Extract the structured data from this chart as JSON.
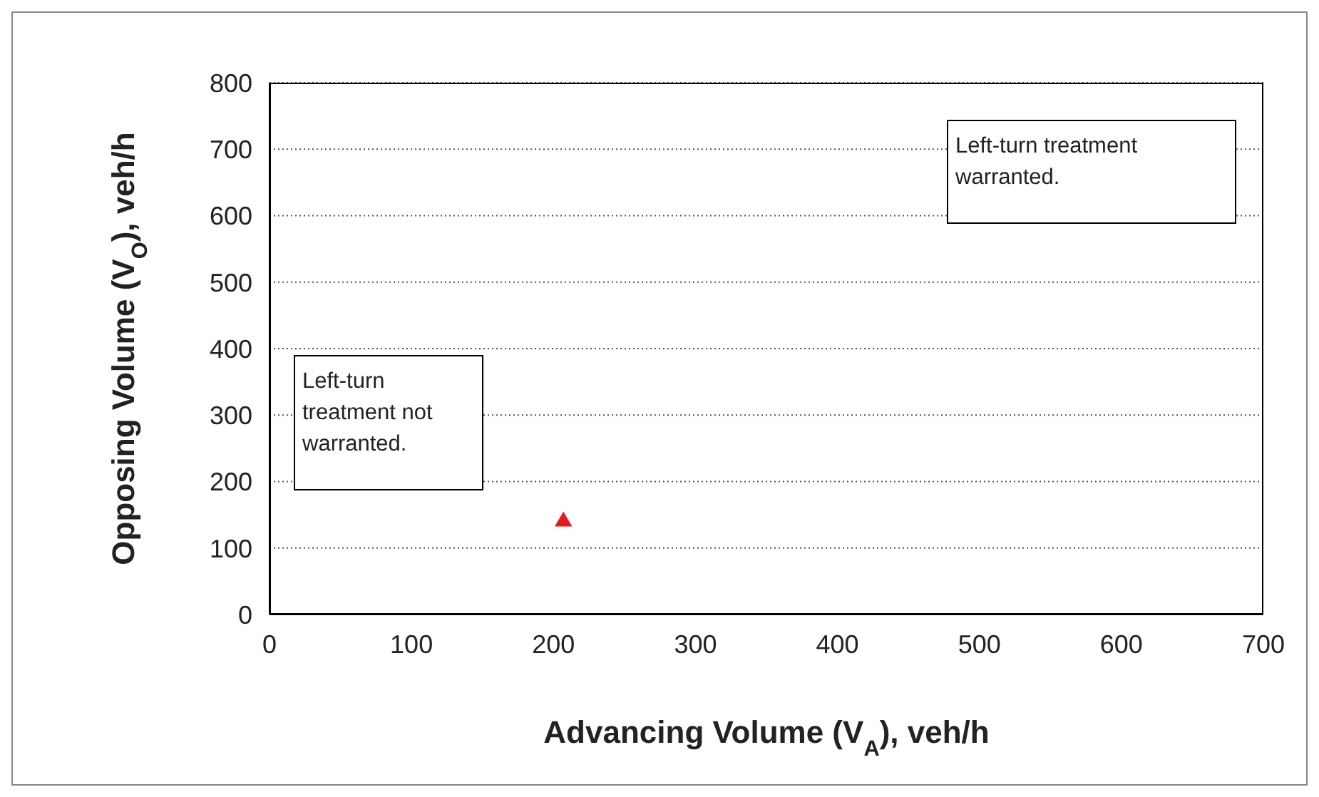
{
  "chart_data": {
    "type": "scatter",
    "xlabel": "Advancing Volume (V$_{A}$), veh/h",
    "ylabel": "Opposing Volume (V$_{O}$), veh/h",
    "x": [
      207
    ],
    "series": [
      {
        "color": "#e8191c",
        "values": [
          140
        ]
      }
    ],
    "marker": "triangle",
    "xlim": [
      0,
      700
    ],
    "xticks": [
      0,
      100,
      200,
      300,
      400,
      500,
      600,
      700
    ],
    "ylim": [
      0,
      800
    ],
    "yticks": [
      0,
      100,
      200,
      300,
      400,
      500,
      600,
      700,
      800
    ],
    "grid": "y",
    "annotations": [
      "Left-turn treatment not warranted.",
      "Left-turn treatment warranted."
    ]
  }
}
